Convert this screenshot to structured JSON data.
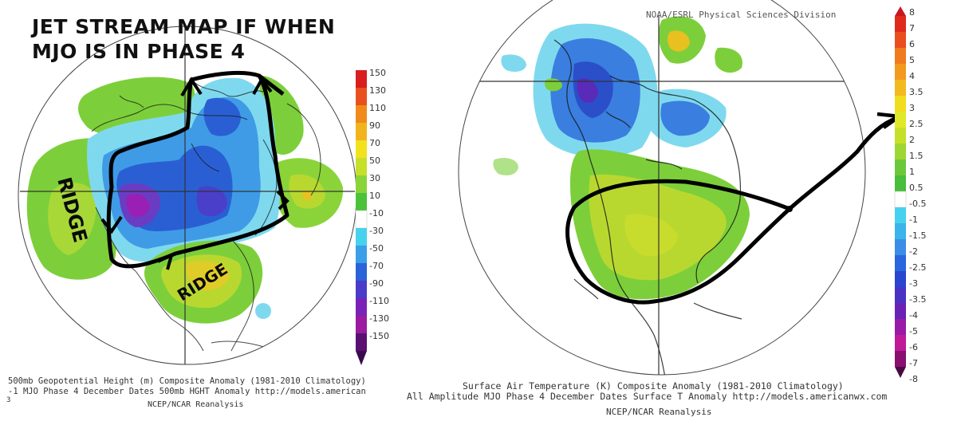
{
  "left_map": {
    "overlay_title_line1": "JET STREAM MAP IF WHEN",
    "overlay_title_line2": "MJO IS IN PHASE 4",
    "ridge_label_west": "RIDGE",
    "ridge_label_east": "RIDGE",
    "caption_line1": "500mb Geopotential Height (m) Composite Anomaly (1981-2010 Climatology)",
    "caption_line2": "-1 MJO Phase 4 December Dates 500mb HGHT Anomaly http://models.american",
    "caption_line3": "NCEP/NCAR Reanalysis",
    "corner_mark": "3",
    "colorbar_ticks": [
      "150",
      "130",
      "110",
      "90",
      "70",
      "50",
      "30",
      "10",
      "-10",
      "-30",
      "-50",
      "-70",
      "-90",
      "-110",
      "-130",
      "-150"
    ]
  },
  "right_map": {
    "header_text": "NOAA/ESRL Physical Sciences Division",
    "caption_line1": "Surface Air Temperature (K) Composite Anomaly (1981-2010 Climatology)",
    "caption_line2": "All Amplitude MJO Phase 4 December Dates Surface T Anomaly http://models.americanwx.com",
    "caption_line3": "NCEP/NCAR Reanalysis",
    "colorbar_ticks": [
      "8",
      "7",
      "6",
      "5",
      "4",
      "3.5",
      "3",
      "2.5",
      "2",
      "1.5",
      "1",
      "0.5",
      "-0.5",
      "-1",
      "-1.5",
      "-2",
      "-2.5",
      "-3",
      "-3.5",
      "-4",
      "-5",
      "-6",
      "-7",
      "-8"
    ]
  },
  "colors": {
    "strong_positive": "#e8c020",
    "positive": "#b8d830",
    "weak_positive": "#7ccf3a",
    "weak_negative": "#7fd9ee",
    "negative": "#3a7ee0",
    "strong_negative": "#5a2ab8",
    "extreme_negative": "#8a1fb0",
    "drawn_line": "#000000"
  }
}
